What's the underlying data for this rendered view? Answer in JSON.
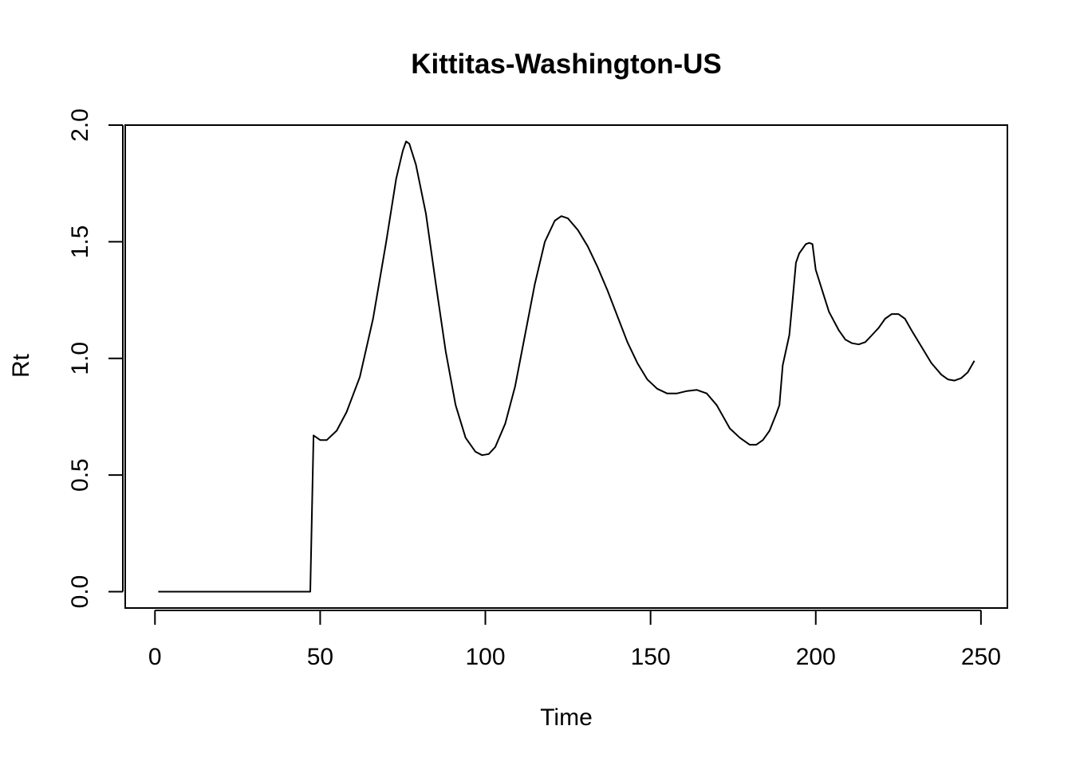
{
  "chart_data": {
    "type": "line",
    "title": "Kittitas-Washington-US",
    "xlabel": "Time",
    "ylabel": "Rt",
    "xlim": [
      -9,
      258
    ],
    "ylim": [
      -0.07,
      2.0
    ],
    "x_ticks": [
      0,
      50,
      100,
      150,
      200,
      250
    ],
    "y_ticks": [
      0.0,
      0.5,
      1.0,
      1.5,
      2.0
    ],
    "x_tick_labels": [
      "0",
      "50",
      "100",
      "150",
      "200",
      "250"
    ],
    "y_tick_labels": [
      "0.0",
      "0.5",
      "1.0",
      "1.5",
      "2.0"
    ],
    "grid": false,
    "legend": "none",
    "colors": {
      "line": "#000000",
      "axis": "#000000",
      "background": "#ffffff"
    },
    "series": [
      {
        "points": [
          [
            1,
            0.0
          ],
          [
            47,
            0.0
          ],
          [
            48,
            0.67
          ],
          [
            50,
            0.65
          ],
          [
            52,
            0.65
          ],
          [
            55,
            0.69
          ],
          [
            58,
            0.77
          ],
          [
            62,
            0.92
          ],
          [
            66,
            1.17
          ],
          [
            70,
            1.5
          ],
          [
            73,
            1.77
          ],
          [
            75,
            1.89
          ],
          [
            76,
            1.93
          ],
          [
            77,
            1.92
          ],
          [
            79,
            1.83
          ],
          [
            82,
            1.62
          ],
          [
            85,
            1.32
          ],
          [
            88,
            1.03
          ],
          [
            91,
            0.8
          ],
          [
            94,
            0.66
          ],
          [
            97,
            0.6
          ],
          [
            99,
            0.585
          ],
          [
            101,
            0.59
          ],
          [
            103,
            0.62
          ],
          [
            106,
            0.72
          ],
          [
            109,
            0.88
          ],
          [
            112,
            1.1
          ],
          [
            115,
            1.32
          ],
          [
            118,
            1.5
          ],
          [
            121,
            1.59
          ],
          [
            123,
            1.61
          ],
          [
            125,
            1.6
          ],
          [
            128,
            1.55
          ],
          [
            131,
            1.48
          ],
          [
            134,
            1.39
          ],
          [
            137,
            1.29
          ],
          [
            140,
            1.18
          ],
          [
            143,
            1.07
          ],
          [
            146,
            0.98
          ],
          [
            149,
            0.91
          ],
          [
            152,
            0.87
          ],
          [
            155,
            0.85
          ],
          [
            158,
            0.85
          ],
          [
            161,
            0.86
          ],
          [
            164,
            0.865
          ],
          [
            167,
            0.85
          ],
          [
            170,
            0.8
          ],
          [
            174,
            0.7
          ],
          [
            177,
            0.66
          ],
          [
            180,
            0.63
          ],
          [
            182,
            0.63
          ],
          [
            184,
            0.65
          ],
          [
            186,
            0.69
          ],
          [
            188,
            0.76
          ],
          [
            189,
            0.8
          ],
          [
            190,
            0.97
          ],
          [
            192,
            1.1
          ],
          [
            193,
            1.25
          ],
          [
            194,
            1.41
          ],
          [
            195,
            1.45
          ],
          [
            197,
            1.49
          ],
          [
            198,
            1.495
          ],
          [
            199,
            1.49
          ],
          [
            200,
            1.38
          ],
          [
            202,
            1.29
          ],
          [
            204,
            1.2
          ],
          [
            207,
            1.12
          ],
          [
            209,
            1.08
          ],
          [
            211,
            1.065
          ],
          [
            213,
            1.06
          ],
          [
            215,
            1.07
          ],
          [
            217,
            1.1
          ],
          [
            219,
            1.13
          ],
          [
            221,
            1.17
          ],
          [
            223,
            1.19
          ],
          [
            225,
            1.19
          ],
          [
            227,
            1.17
          ],
          [
            229,
            1.12
          ],
          [
            232,
            1.05
          ],
          [
            235,
            0.98
          ],
          [
            238,
            0.93
          ],
          [
            240,
            0.91
          ],
          [
            242,
            0.905
          ],
          [
            244,
            0.915
          ],
          [
            246,
            0.94
          ],
          [
            248,
            0.99
          ]
        ]
      }
    ]
  }
}
